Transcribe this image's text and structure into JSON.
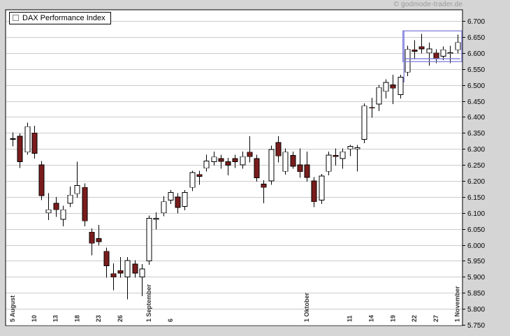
{
  "watermark": "© godmode-trader.de",
  "legend": {
    "label": "DAX Performance Index"
  },
  "chart_data": {
    "type": "candlestick",
    "title": "DAX Performance Index",
    "xlabel": "",
    "ylabel": "",
    "ylim": [
      5750,
      6700
    ],
    "grid": "horizontal",
    "legend_position": "top-left",
    "colors": {
      "up": "#ffffff",
      "down": "#7b1c1c",
      "wick": "#000000",
      "grid": "#cbcbcb",
      "plot_bg": "#ffffff",
      "border": "#000000",
      "axis_text": "#000000",
      "x_label_text": "#333333",
      "annotation": "#7f7fdd",
      "frame_bg": "#d5d5d5"
    },
    "y_ticks": [
      {
        "v": 6700,
        "label": "6.700"
      },
      {
        "v": 6650,
        "label": "6.650"
      },
      {
        "v": 6600,
        "label": "6.600"
      },
      {
        "v": 6550,
        "label": "6.550"
      },
      {
        "v": 6500,
        "label": "6.500"
      },
      {
        "v": 6450,
        "label": "6.450"
      },
      {
        "v": 6400,
        "label": "6.400"
      },
      {
        "v": 6350,
        "label": "6.350"
      },
      {
        "v": 6300,
        "label": "6.300"
      },
      {
        "v": 6250,
        "label": "6.250"
      },
      {
        "v": 6200,
        "label": "6.200"
      },
      {
        "v": 6150,
        "label": "6.150"
      },
      {
        "v": 6100,
        "label": "6.100"
      },
      {
        "v": 6050,
        "label": "6.050"
      },
      {
        "v": 6000,
        "label": "6.000"
      },
      {
        "v": 5950,
        "label": "5.950"
      },
      {
        "v": 5900,
        "label": "5.900"
      },
      {
        "v": 5850,
        "label": "5.850"
      },
      {
        "v": 5800,
        "label": "5.800"
      },
      {
        "v": 5750,
        "label": "5.750"
      }
    ],
    "x_ticks": [
      {
        "i": 0,
        "label": "5 August"
      },
      {
        "i": 3,
        "label": "10"
      },
      {
        "i": 6,
        "label": "13"
      },
      {
        "i": 9,
        "label": "18"
      },
      {
        "i": 12,
        "label": "23"
      },
      {
        "i": 15,
        "label": "26"
      },
      {
        "i": 19,
        "label": "1 September"
      },
      {
        "i": 22,
        "label": "6"
      },
      {
        "i": 41,
        "label": "1 Oktober"
      },
      {
        "i": 47,
        "label": "11"
      },
      {
        "i": 50,
        "label": "14"
      },
      {
        "i": 53,
        "label": "19"
      },
      {
        "i": 56,
        "label": "22"
      },
      {
        "i": 59,
        "label": "27"
      },
      {
        "i": 62,
        "label": "1 November"
      }
    ],
    "candles": [
      [
        "5 Aug",
        6330,
        6352,
        6308,
        6332
      ],
      [
        "6 Aug",
        6340,
        6348,
        6240,
        6260
      ],
      [
        "9 Aug",
        6290,
        6382,
        6282,
        6370
      ],
      [
        "10 Aug",
        6350,
        6372,
        6270,
        6286
      ],
      [
        "11 Aug",
        6250,
        6262,
        6140,
        6154
      ],
      [
        "12 Aug",
        6100,
        6162,
        6078,
        6110
      ],
      [
        "13 Aug",
        6130,
        6150,
        6088,
        6110
      ],
      [
        "16 Aug",
        6080,
        6122,
        6058,
        6110
      ],
      [
        "17 Aug",
        6130,
        6182,
        6118,
        6156
      ],
      [
        "18 Aug",
        6160,
        6260,
        6148,
        6186
      ],
      [
        "19 Aug",
        6180,
        6192,
        6058,
        6075
      ],
      [
        "20 Aug",
        6040,
        6052,
        5968,
        6005
      ],
      [
        "23 Aug",
        6020,
        6062,
        5998,
        6010
      ],
      [
        "24 Aug",
        5980,
        5992,
        5898,
        5935
      ],
      [
        "25 Aug",
        5910,
        5942,
        5858,
        5899
      ],
      [
        "26 Aug",
        5920,
        5962,
        5898,
        5912
      ],
      [
        "27 Aug",
        5900,
        5962,
        5830,
        5951
      ],
      [
        "30 Aug",
        5940,
        5952,
        5898,
        5912
      ],
      [
        "31 Aug",
        5900,
        5940,
        5840,
        5925
      ],
      [
        "1 Sep",
        5950,
        6092,
        5938,
        6083
      ],
      [
        "2 Sep",
        6080,
        6102,
        6048,
        6083
      ],
      [
        "3 Sep",
        6100,
        6152,
        6090,
        6135
      ],
      [
        "6 Sep",
        6140,
        6172,
        6128,
        6164
      ],
      [
        "7 Sep",
        6150,
        6162,
        6098,
        6117
      ],
      [
        "8 Sep",
        6120,
        6172,
        6108,
        6164
      ],
      [
        "9 Sep",
        6180,
        6232,
        6168,
        6226
      ],
      [
        "10 Sep",
        6220,
        6232,
        6188,
        6214
      ],
      [
        "13 Sep",
        6240,
        6282,
        6230,
        6262
      ],
      [
        "14 Sep",
        6260,
        6292,
        6248,
        6275
      ],
      [
        "15 Sep",
        6270,
        6282,
        6238,
        6261
      ],
      [
        "16 Sep",
        6260,
        6272,
        6218,
        6249
      ],
      [
        "17 Sep",
        6270,
        6282,
        6240,
        6260
      ],
      [
        "20 Sep",
        6250,
        6292,
        6238,
        6276
      ],
      [
        "21 Sep",
        6290,
        6340,
        6258,
        6276
      ],
      [
        "22 Sep",
        6270,
        6282,
        6198,
        6210
      ],
      [
        "23 Sep",
        6190,
        6202,
        6130,
        6180
      ],
      [
        "24 Sep",
        6200,
        6310,
        6188,
        6298
      ],
      [
        "27 Sep",
        6320,
        6340,
        6258,
        6278
      ],
      [
        "28 Sep",
        6230,
        6302,
        6220,
        6290
      ],
      [
        "29 Sep",
        6280,
        6292,
        6238,
        6246
      ],
      [
        "30 Sep",
        6250,
        6302,
        6210,
        6229
      ],
      [
        "1 Okt",
        6250,
        6292,
        6198,
        6211
      ],
      [
        "4 Okt",
        6200,
        6212,
        6118,
        6135
      ],
      [
        "5 Okt",
        6140,
        6222,
        6128,
        6215
      ],
      [
        "6 Okt",
        6230,
        6292,
        6218,
        6281
      ],
      [
        "7 Okt",
        6280,
        6302,
        6248,
        6276
      ],
      [
        "8 Okt",
        6270,
        6302,
        6238,
        6291
      ],
      [
        "11 Okt",
        6300,
        6312,
        6278,
        6308
      ],
      [
        "12 Okt",
        6300,
        6312,
        6230,
        6304
      ],
      [
        "13 Okt",
        6330,
        6442,
        6318,
        6434
      ],
      [
        "14 Okt",
        6430,
        6460,
        6398,
        6428
      ],
      [
        "15 Okt",
        6440,
        6500,
        6418,
        6492
      ],
      [
        "18 Okt",
        6480,
        6518,
        6458,
        6508
      ],
      [
        "19 Okt",
        6500,
        6532,
        6440,
        6490
      ],
      [
        "20 Okt",
        6470,
        6532,
        6458,
        6524
      ],
      [
        "21 Okt",
        6540,
        6622,
        6528,
        6611
      ],
      [
        "22 Okt",
        6610,
        6640,
        6580,
        6605
      ],
      [
        "25 Okt",
        6620,
        6660,
        6598,
        6613
      ],
      [
        "26 Okt",
        6600,
        6632,
        6560,
        6613
      ],
      [
        "27 Okt",
        6600,
        6612,
        6568,
        6582
      ],
      [
        "28 Okt",
        6590,
        6620,
        6578,
        6610
      ],
      [
        "29 Okt",
        6598,
        6622,
        6568,
        6601
      ],
      [
        "1 Nov",
        6610,
        6658,
        6598,
        6633
      ]
    ],
    "annotation": {
      "color": "#7f7fdd",
      "box": {
        "from_index": 54.4,
        "to_index": 62.7,
        "top_value": 6669,
        "bottom_value": 6573
      },
      "vline": {
        "index": 54.55,
        "top_value": 6669,
        "bottom_value": 6508
      },
      "hline": {
        "from_index": 54.8,
        "to_index": 62.4,
        "value": 6582
      }
    }
  }
}
